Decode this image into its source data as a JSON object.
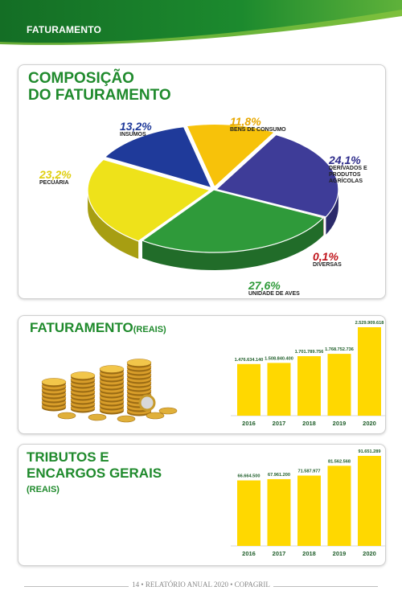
{
  "header": {
    "title": "FATURAMENTO"
  },
  "composicao": {
    "title_line1": "COMPOSIÇÃO",
    "title_line2": "DO FATURAMENTO"
  },
  "faturamento": {
    "title": "FATURAMENTO",
    "subtitle": "(REAIS)"
  },
  "tributos": {
    "title_line1": "TRIBUTOS E",
    "title_line2": "ENCARGOS GERAIS",
    "subtitle": "(REAIS)"
  },
  "footer": {
    "page": "14",
    "report": "RELATÓRIO ANUAL 2020",
    "company": "COPAGRIL",
    "sep": "•"
  },
  "colors": {
    "green_dark": "#1a7a2a",
    "green_light": "#7ec242",
    "bar_yellow": "#ffd800",
    "title_green": "#1f8a2c"
  },
  "chart_data": [
    {
      "type": "pie",
      "title": "COMPOSIÇÃO DO FATURAMENTO",
      "slices": [
        {
          "label": "BENS DE CONSUMO",
          "pct_label": "11,8%",
          "value": 11.8,
          "color": "#f7c20a",
          "pct_color": "#e8a800"
        },
        {
          "label": "DERIVADOS E PRODUTOS AGRÍCOLAS",
          "pct_label": "24,1%",
          "value": 24.1,
          "color": "#3e3c98",
          "pct_color": "#2d2b8a"
        },
        {
          "label": "DIVERSAS",
          "pct_label": "0,1%",
          "value": 0.1,
          "color": "#c0141b",
          "pct_color": "#c0141b"
        },
        {
          "label": "UNIDADE DE AVES",
          "pct_label": "27,6%",
          "value": 27.6,
          "color": "#2f9a3a",
          "pct_color": "#2f9a3a"
        },
        {
          "label": "PECUÁRIA",
          "pct_label": "23,2%",
          "value": 23.2,
          "color": "#eee21a",
          "pct_color": "#e0cf10"
        },
        {
          "label": "INSUMOS",
          "pct_label": "13,2%",
          "value": 13.2,
          "color": "#1f3a9a",
          "pct_color": "#1f3a9a"
        }
      ]
    },
    {
      "type": "bar",
      "title": "FATURAMENTO (REAIS)",
      "categories": [
        "2016",
        "2017",
        "2018",
        "2019",
        "2020"
      ],
      "values": [
        1476634140,
        1508840400,
        1701789756,
        1768752736,
        2529909618
      ],
      "value_labels": [
        "1.476.634.140",
        "1.508.840.400",
        "1.701.789.756",
        "1.768.752.736",
        "2.529.909.618"
      ]
    },
    {
      "type": "bar",
      "title": "TRIBUTOS E ENCARGOS GERAIS (REAIS)",
      "categories": [
        "2016",
        "2017",
        "2018",
        "2019",
        "2020"
      ],
      "values": [
        66664500,
        67961200,
        71587977,
        81562568,
        91651289
      ],
      "value_labels": [
        "66.664.500",
        "67.961.200",
        "71.587.977",
        "81.562.568",
        "91.651.289"
      ]
    }
  ]
}
